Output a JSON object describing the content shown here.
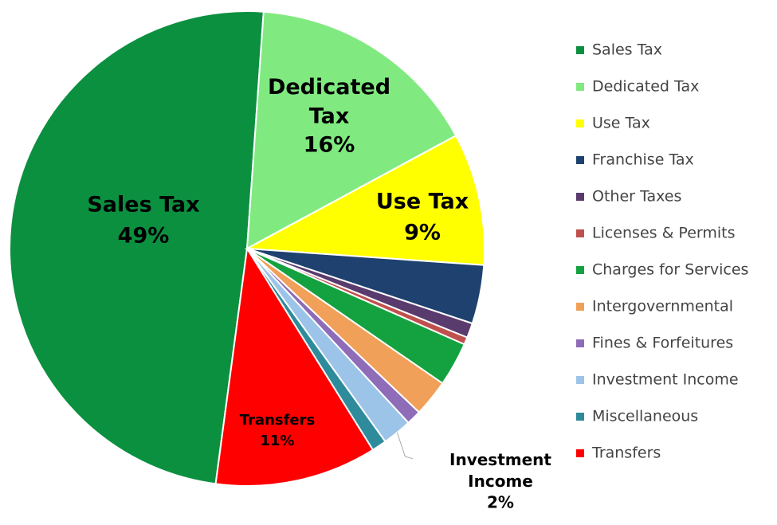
{
  "chart_data": {
    "type": "pie",
    "categories": [
      "Sales Tax",
      "Dedicated Tax",
      "Use Tax",
      "Franchise Tax",
      "Other Taxes",
      "Licenses & Permits",
      "Charges for Services",
      "Intergovernmental",
      "Fines & Forfeitures",
      "Investment Income",
      "Miscellaneous",
      "Transfers"
    ],
    "values": [
      49,
      16,
      9,
      4,
      1,
      0.5,
      3,
      2.5,
      1,
      2,
      1,
      11
    ],
    "value_labels": [
      "49%",
      "16%",
      "9%",
      null,
      null,
      null,
      null,
      null,
      null,
      "2%",
      null,
      "11%"
    ],
    "colors": [
      "#0b9040",
      "#80ea80",
      "#ffff00",
      "#1f416f",
      "#5a3b6e",
      "#c0504d",
      "#13a23f",
      "#f0a058",
      "#8e6cb8",
      "#9cc4e8",
      "#2e8b9b",
      "#ff0000"
    ],
    "legend": "right"
  }
}
